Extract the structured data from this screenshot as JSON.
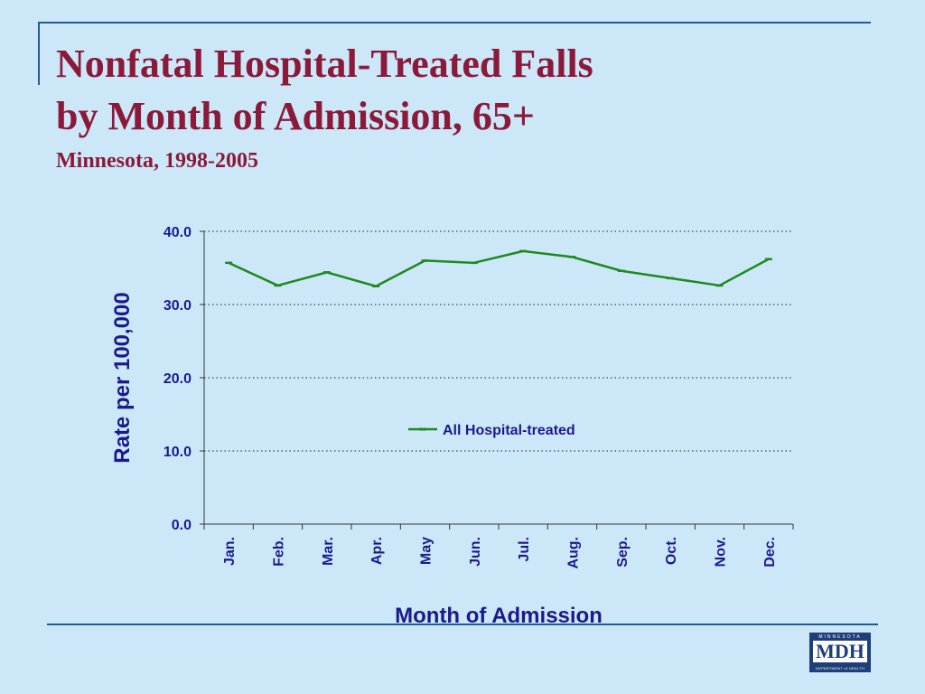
{
  "slide": {
    "title_line1": "Nonfatal Hospital-Treated Falls",
    "title_line2": "by Month of Admission, 65+",
    "subtitle": "Minnesota, 1998-2005"
  },
  "logo": {
    "top_text": "MINNESOTA",
    "main_text": "MDH",
    "bottom_text": "DEPARTMENT of HEALTH"
  },
  "colors": {
    "background": "#cce8f8",
    "title": "#8b1a3a",
    "axis_text": "#1a1a8c",
    "series": "#1e8a1e",
    "rule": "#1f5b96"
  },
  "chart_data": {
    "type": "line",
    "xlabel": "Month of Admission",
    "ylabel": "Rate per 100,000",
    "ylim": [
      0,
      40
    ],
    "y_ticks": [
      "0.0",
      "10.0",
      "20.0",
      "30.0",
      "40.0"
    ],
    "grid": "horizontal dotted",
    "legend_position": "center",
    "categories": [
      "Jan.",
      "Feb.",
      "Mar.",
      "Apr.",
      "May",
      "Jun.",
      "Jul.",
      "Aug.",
      "Sep.",
      "Oct.",
      "Nov.",
      "Dec."
    ],
    "series": [
      {
        "name": "All Hospital-treated",
        "values": [
          35.7,
          32.6,
          34.4,
          32.5,
          36.0,
          35.7,
          37.3,
          36.5,
          34.6,
          33.6,
          32.6,
          36.2
        ]
      }
    ]
  }
}
